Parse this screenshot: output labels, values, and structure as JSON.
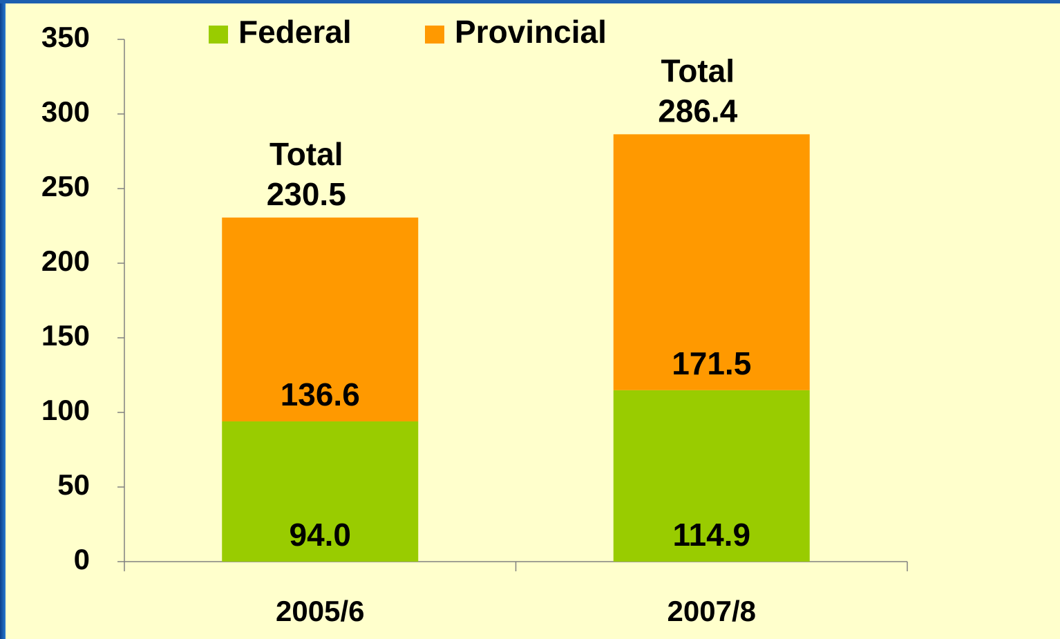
{
  "chart_data": {
    "type": "stacked_bar",
    "categories": [
      "2005/6",
      "2007/8"
    ],
    "series": [
      {
        "name": "Federal",
        "color": "#99cc00",
        "values": [
          94.0,
          114.9
        ],
        "value_labels": [
          "94.0",
          "114.9"
        ]
      },
      {
        "name": "Provincial",
        "color": "#ff9900",
        "values": [
          136.6,
          171.5
        ]
      }
    ],
    "total_label": "Total",
    "totals": [
      230.5,
      286.4
    ],
    "ylim": [
      0,
      350
    ],
    "yticks": [
      0,
      50,
      100,
      150,
      200,
      250,
      300,
      350
    ]
  }
}
